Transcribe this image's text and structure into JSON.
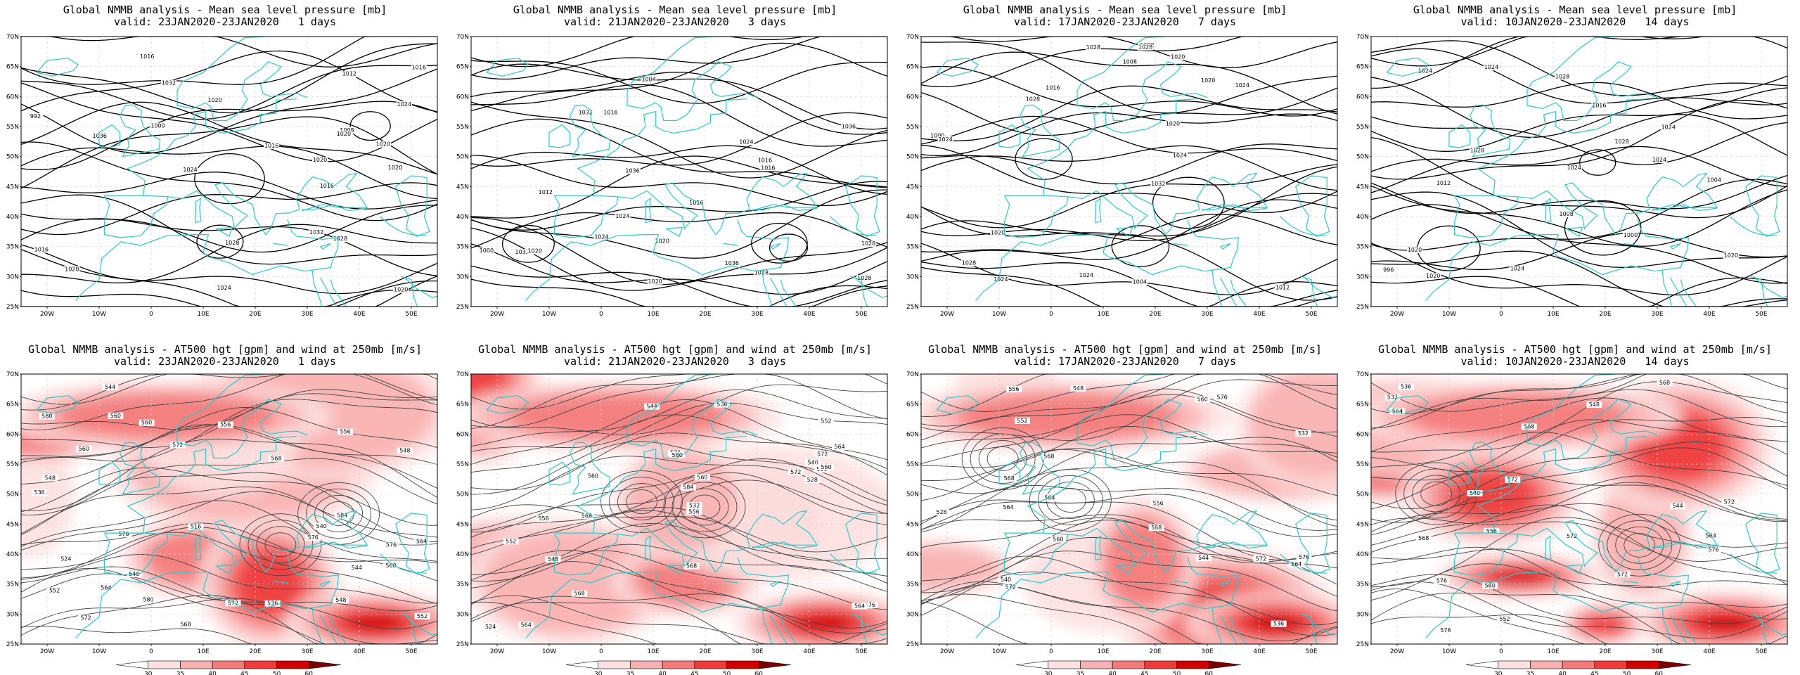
{
  "map": {
    "lon_min": -25,
    "lon_max": 55,
    "lat_min": 25,
    "lat_max": 70,
    "lat_ticks": [
      "70N",
      "65N",
      "60N",
      "55N",
      "50N",
      "45N",
      "40N",
      "35N",
      "30N",
      "25N"
    ],
    "lon_ticks": [
      "20W",
      "10W",
      "0",
      "10E",
      "20E",
      "30E",
      "40E",
      "50E"
    ],
    "coastline_color": "#2ec8c8",
    "grid_style": "dashed light gray"
  },
  "colorbar": {
    "levels": [
      "30",
      "35",
      "40",
      "45",
      "50",
      "60"
    ],
    "colors": [
      "#ffffff",
      "#fde0e0",
      "#f9b0b0",
      "#f47a7a",
      "#ee3b3b",
      "#d10000",
      "#7a0000"
    ]
  },
  "panels": [
    {
      "title": "Global NMMB analysis - Mean sea level pressure [mb]",
      "subtitle": "valid: 23JAN2020-23JAN2020   1 days",
      "type": "mslp",
      "contour_labels": [
        "992",
        "1000",
        "1012",
        "1016",
        "1016",
        "1020",
        "1020",
        "1024",
        "1028",
        "1032",
        "1036",
        "1024",
        "1020",
        "1016",
        "1016",
        "1020",
        "1028",
        "1032",
        "1020",
        "1020",
        "1024",
        "1016",
        "1008",
        "1020"
      ]
    },
    {
      "title": "Global NMMB analysis - Mean sea level pressure [mb]",
      "subtitle": "valid: 21JAN2020-23JAN2020   3 days",
      "type": "mslp",
      "contour_labels": [
        "1000",
        "1004",
        "1012",
        "1016",
        "1020",
        "1024",
        "1028",
        "1032",
        "1036",
        "1036",
        "1024",
        "1020",
        "1016",
        "1016",
        "1028",
        "1032",
        "1036",
        "1028",
        "1024",
        "1020",
        "1016"
      ]
    },
    {
      "title": "Global NMMB analysis - Mean sea level pressure [mb]",
      "subtitle": "valid: 17JAN2020-23JAN2020   7 days",
      "type": "mslp",
      "contour_labels": [
        "1000",
        "1004",
        "1008",
        "1012",
        "1016",
        "1020",
        "1024",
        "1024",
        "1028",
        "1032",
        "1028",
        "1024",
        "1020",
        "1024",
        "1028",
        "1032",
        "1028",
        "1024",
        "1020",
        "1020"
      ]
    },
    {
      "title": "Global NMMB analysis - Mean sea level pressure [mb]",
      "subtitle": "valid: 10JAN2020-23JAN2020   14 days",
      "type": "mslp",
      "contour_labels": [
        "996",
        "1000",
        "1004",
        "1008",
        "1012",
        "1016",
        "1020",
        "1024",
        "1028",
        "1028",
        "1024",
        "1024",
        "1024",
        "1028",
        "1024",
        "1020",
        "1020",
        "1024"
      ]
    },
    {
      "title": "Global NMMB analysis - AT500 hgt [gpm] and wind at 250mb [m/s]",
      "subtitle": "valid: 23JAN2020-23JAN2020   1 days",
      "type": "z500",
      "contour_labels": [
        "536",
        "540",
        "544",
        "548",
        "552",
        "556",
        "560",
        "564",
        "568",
        "572",
        "576",
        "580",
        "548",
        "552",
        "556",
        "560",
        "564",
        "568",
        "572",
        "576",
        "580",
        "584",
        "516",
        "524",
        "536",
        "540",
        "544",
        "548",
        "560",
        "568",
        "572",
        "576"
      ]
    },
    {
      "title": "Global NMMB analysis - AT500 hgt [gpm] and wind at 250mb [m/s]",
      "subtitle": "valid: 21JAN2020-23JAN2020   3 days",
      "type": "z500",
      "contour_labels": [
        "524",
        "528",
        "532",
        "536",
        "540",
        "544",
        "548",
        "552",
        "556",
        "560",
        "564",
        "568",
        "572",
        "576",
        "580",
        "584",
        "556",
        "560",
        "564",
        "568",
        "572",
        "576",
        "552",
        "556",
        "560",
        "564",
        "568"
      ]
    },
    {
      "title": "Global NMMB analysis - AT500 hgt [gpm] and wind at 250mb [m/s]",
      "subtitle": "valid: 17JAN2020-23JAN2020   7 days",
      "type": "z500",
      "contour_labels": [
        "528",
        "532",
        "536",
        "540",
        "544",
        "548",
        "552",
        "556",
        "560",
        "564",
        "568",
        "572",
        "576",
        "564",
        "568",
        "572",
        "576",
        "556",
        "560",
        "564",
        "568"
      ]
    },
    {
      "title": "Global NMMB analysis - AT500 hgt [gpm] and wind at 250mb [m/s]",
      "subtitle": "valid: 10JAN2020-23JAN2020   14 days",
      "type": "z500",
      "contour_labels": [
        "532",
        "536",
        "540",
        "544",
        "548",
        "552",
        "556",
        "560",
        "564",
        "568",
        "572",
        "576",
        "564",
        "568",
        "572",
        "576",
        "572",
        "576",
        "568",
        "572"
      ]
    }
  ]
}
